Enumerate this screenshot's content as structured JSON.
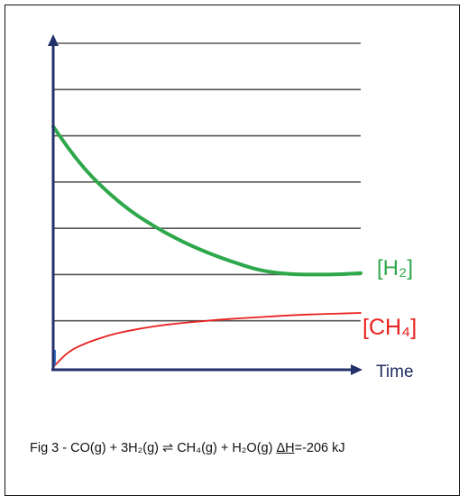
{
  "chart_data": {
    "type": "line",
    "title": "",
    "xlabel": "Time",
    "ylabel": "",
    "grid": true,
    "grid_lines": 7,
    "x": [
      0,
      0.05,
      0.1,
      0.15,
      0.2,
      0.25,
      0.3,
      0.35,
      0.4,
      0.45,
      0.5,
      0.55,
      0.6,
      0.65,
      0.7,
      0.75,
      0.8,
      0.85,
      0.9,
      0.95,
      1.0
    ],
    "xlim": [
      0,
      1
    ],
    "ylim": [
      0,
      7
    ],
    "series": [
      {
        "name": "[H₂]",
        "color": "#2ea84b",
        "values": [
          5.2,
          4.72,
          4.3,
          3.95,
          3.65,
          3.38,
          3.16,
          2.96,
          2.78,
          2.62,
          2.48,
          2.35,
          2.24,
          2.13,
          2.06,
          2.02,
          2.0,
          2.0,
          2.0,
          2.01,
          2.03
        ]
      },
      {
        "name": "[CH₄]",
        "color": "#e8221f",
        "values": [
          0.0,
          0.34,
          0.5,
          0.62,
          0.72,
          0.79,
          0.85,
          0.9,
          0.94,
          0.97,
          1.0,
          1.03,
          1.05,
          1.07,
          1.09,
          1.11,
          1.13,
          1.14,
          1.15,
          1.16,
          1.17
        ]
      }
    ]
  },
  "caption": {
    "prefix": "Fig 3 -  CO(g) + 3H₂(g)  ⇌ CH₄(g) + H₂O(g) ",
    "dh": "ΔH",
    "suffix": "=-206 kJ"
  }
}
